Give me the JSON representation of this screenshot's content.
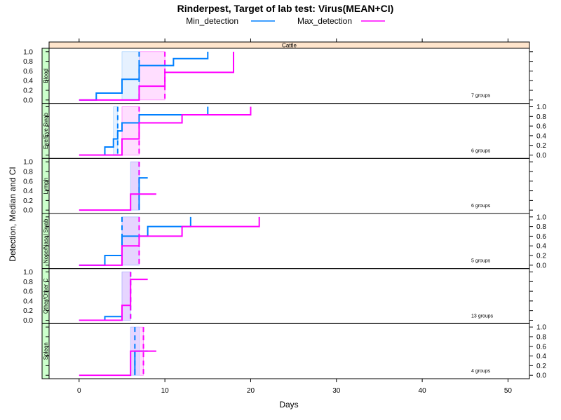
{
  "chart_data": {
    "type": "line",
    "title": "Rinderpest, Target of lab test: Virus(MEAN+CI)",
    "xlabel": "Days",
    "ylabel": "Detection, Median and CI",
    "xlim": [
      -3.5,
      52.5
    ],
    "ylim": [
      -0.07,
      1.07
    ],
    "x_ticks": [
      0,
      10,
      20,
      30,
      40,
      50
    ],
    "y_ticks": [
      0.0,
      0.2,
      0.4,
      0.6,
      0.8,
      1.0
    ],
    "y_tick_labels": [
      "0.0",
      "0.2",
      "0.4",
      "0.6",
      "0.8",
      "1.0"
    ],
    "strip_label": "Cattle",
    "legend": {
      "position": "top",
      "entries": [
        {
          "name": "Min_detection",
          "color": "#0080ff"
        },
        {
          "name": "Max_detection",
          "color": "#ff00ff"
        }
      ]
    },
    "panels": [
      {
        "label": "Blood",
        "groups_text": "7 groups",
        "min_detection": {
          "steps": [
            [
              0,
              0
            ],
            [
              2,
              0.143
            ],
            [
              5,
              0.429
            ],
            [
              7,
              0.714
            ],
            [
              11,
              0.857
            ],
            [
              15,
              1.0
            ]
          ],
          "ci": [
            5,
            7
          ],
          "median": 7
        },
        "max_detection": {
          "steps": [
            [
              0,
              0
            ],
            [
              7,
              0.286
            ],
            [
              10,
              0.571
            ],
            [
              18,
              1.0
            ]
          ],
          "ci": [
            7,
            10
          ],
          "median": 10
        }
      },
      {
        "label": "Eye/Eye Swab",
        "groups_text": "6 groups",
        "min_detection": {
          "steps": [
            [
              4.5,
              0
            ],
            [
              3,
              0.167
            ],
            [
              4,
              0.333
            ],
            [
              4.5,
              0.5
            ],
            [
              5,
              0.667
            ],
            [
              7,
              0.833
            ],
            [
              15,
              1.0
            ]
          ],
          "ci": [
            4,
            4.5
          ],
          "median": 4.5
        },
        "max_detection": {
          "steps": [
            [
              0,
              0
            ],
            [
              5,
              0.333
            ],
            [
              7,
              0.667
            ],
            [
              12,
              0.833
            ],
            [
              20,
              1.0
            ]
          ],
          "ci": [
            5,
            7
          ],
          "median": 7
        }
      },
      {
        "label": "Lymph",
        "groups_text": "6 groups",
        "min_detection": {
          "steps": [
            [
              7,
              0
            ],
            [
              7,
              0.667
            ],
            [
              8,
              0.667
            ]
          ],
          "ci": [
            6,
            7
          ],
          "median": 7
        },
        "max_detection": {
          "steps": [
            [
              0,
              0
            ],
            [
              6,
              0.333
            ],
            [
              9,
              0.333
            ]
          ],
          "ci": [
            6,
            7
          ],
          "median": 7
        }
      },
      {
        "label": "Nose/Nasal Swab",
        "groups_text": "5 groups",
        "min_detection": {
          "steps": [
            [
              0,
              0
            ],
            [
              3,
              0.2
            ],
            [
              5,
              0.6
            ],
            [
              8,
              0.8
            ],
            [
              13,
              1.0
            ]
          ],
          "ci": [
            5,
            7
          ],
          "median": 5
        },
        "max_detection": {
          "steps": [
            [
              0,
              0
            ],
            [
              5,
              0.4
            ],
            [
              7,
              0.6
            ],
            [
              12,
              0.8
            ],
            [
              21,
              1.0
            ]
          ],
          "ci": [
            5,
            7
          ],
          "median": 7
        }
      },
      {
        "label": "Other/Other C",
        "groups_text": "13 groups",
        "min_detection": {
          "steps": [
            [
              0,
              0
            ],
            [
              3,
              0.077
            ],
            [
              5,
              0.077
            ]
          ],
          "ci": [
            5,
            6
          ],
          "median": 6
        },
        "max_detection": {
          "steps": [
            [
              0,
              0
            ],
            [
              5,
              0.308
            ],
            [
              6,
              0.846
            ],
            [
              8,
              0.846
            ]
          ],
          "ci": [
            5,
            6
          ],
          "median": 6
        }
      },
      {
        "label": "Spleen",
        "groups_text": "4 groups",
        "min_detection": {
          "steps": [
            [
              6.5,
              0
            ],
            [
              6.5,
              0.5
            ],
            [
              8,
              0.5
            ]
          ],
          "ci": [
            6,
            7
          ],
          "median": 6.5
        },
        "max_detection": {
          "steps": [
            [
              0,
              0
            ],
            [
              6,
              0.5
            ],
            [
              9,
              0.5
            ]
          ],
          "ci": [
            6,
            7.5
          ],
          "median": 7.5
        }
      }
    ]
  }
}
